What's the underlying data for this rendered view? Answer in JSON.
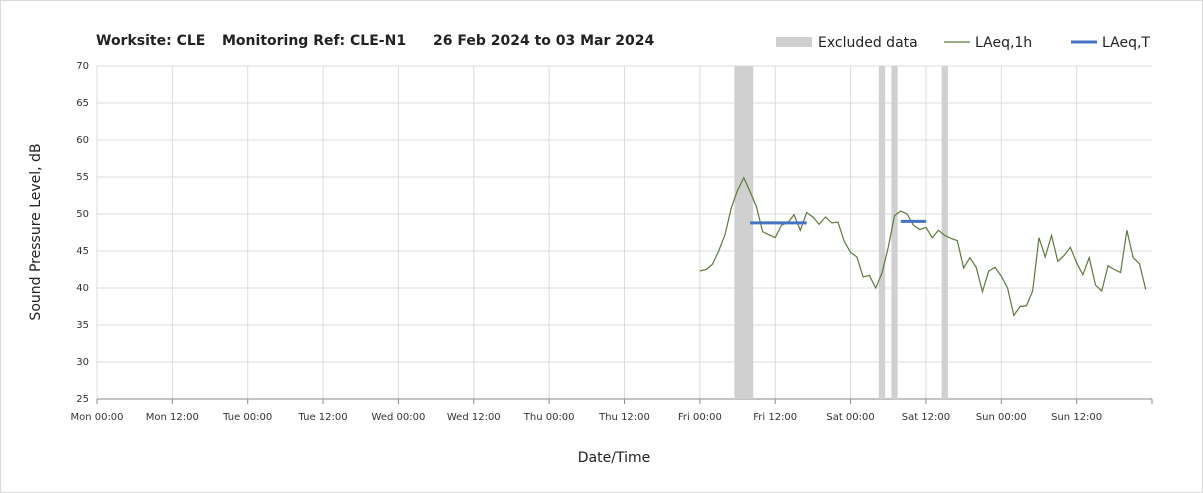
{
  "chart_data": {
    "type": "line",
    "title": [
      "Worksite: CLE",
      "Monitoring Ref: CLE-N1",
      "26 Feb 2024 to 03 Mar 2024"
    ],
    "xlabel": "Date/Time",
    "ylabel": "Sound Pressure Level, dB",
    "xlim": [
      0,
      168
    ],
    "ylim": [
      25,
      70
    ],
    "yticks": [
      25,
      30,
      35,
      40,
      45,
      50,
      55,
      60,
      65,
      70
    ],
    "xticks": [
      {
        "value": 0,
        "label": "Mon 00:00"
      },
      {
        "value": 12,
        "label": "Mon 12:00"
      },
      {
        "value": 24,
        "label": "Tue 00:00"
      },
      {
        "value": 36,
        "label": "Tue 12:00"
      },
      {
        "value": 48,
        "label": "Wed 00:00"
      },
      {
        "value": 60,
        "label": "Wed 12:00"
      },
      {
        "value": 72,
        "label": "Thu 00:00"
      },
      {
        "value": 84,
        "label": "Thu 12:00"
      },
      {
        "value": 96,
        "label": "Fri 00:00"
      },
      {
        "value": 108,
        "label": "Fri 12:00"
      },
      {
        "value": 120,
        "label": "Sat 00:00"
      },
      {
        "value": 132,
        "label": "Sat 12:00"
      },
      {
        "value": 144,
        "label": "Sun 00:00"
      },
      {
        "value": 156,
        "label": "Sun 12:00"
      }
    ],
    "grid": true,
    "excluded": {
      "name": "Excluded data",
      "color": "#d0d0d0",
      "ranges": [
        [
          101.5,
          104.5
        ],
        [
          124.5,
          125.5
        ],
        [
          126.5,
          127.5
        ],
        [
          134.5,
          135.5
        ]
      ]
    },
    "series": [
      {
        "name": "LAeq,1h",
        "color": "#5b7b3b",
        "x": [
          96,
          97,
          98,
          99,
          100,
          101,
          102,
          103,
          104,
          105,
          106,
          107,
          108,
          109,
          110,
          111,
          112,
          113,
          114,
          115,
          116,
          117,
          118,
          119,
          120,
          121,
          122,
          123,
          124,
          125,
          126,
          127,
          128,
          129,
          130,
          131,
          132,
          133,
          134,
          135,
          136,
          137,
          138,
          139,
          140,
          141,
          142,
          143,
          144,
          145,
          146,
          147,
          148,
          149,
          150,
          151,
          152,
          153,
          154,
          155,
          156,
          157,
          158,
          159,
          160,
          161,
          162,
          163,
          164,
          165,
          166,
          167
        ],
        "values": [
          42.3,
          42.5,
          43.2,
          45,
          47.2,
          50.8,
          53.2,
          54.9,
          53,
          51,
          47.6,
          47.2,
          46.8,
          48.5,
          48.8,
          49.9,
          47.8,
          50.2,
          49.6,
          48.6,
          49.6,
          48.8,
          48.9,
          46.3,
          44.8,
          44.2,
          41.5,
          41.7,
          40,
          42,
          45.5,
          49.8,
          50.4,
          50,
          48.5,
          47.9,
          48.2,
          46.8,
          47.8,
          47.1,
          46.7,
          46.4,
          42.7,
          44.1,
          42.8,
          39.5,
          42.3,
          42.8,
          41.6,
          40,
          36.3,
          37.5,
          37.6,
          39.6,
          46.8,
          44.2,
          47.1,
          43.6,
          44.4,
          45.5,
          43.4,
          41.8,
          44.1,
          40.4,
          39.6,
          43,
          42.5,
          42.1,
          47.8,
          44.1,
          43.3,
          39.8
        ]
      },
      {
        "name": "LAeq,T",
        "color": "#4472c4",
        "segments": [
          {
            "x": [
              104,
              113
            ],
            "values": [
              48.8,
              48.8
            ]
          },
          {
            "x": [
              128,
              132
            ],
            "values": [
              49,
              49
            ]
          }
        ]
      }
    ]
  }
}
